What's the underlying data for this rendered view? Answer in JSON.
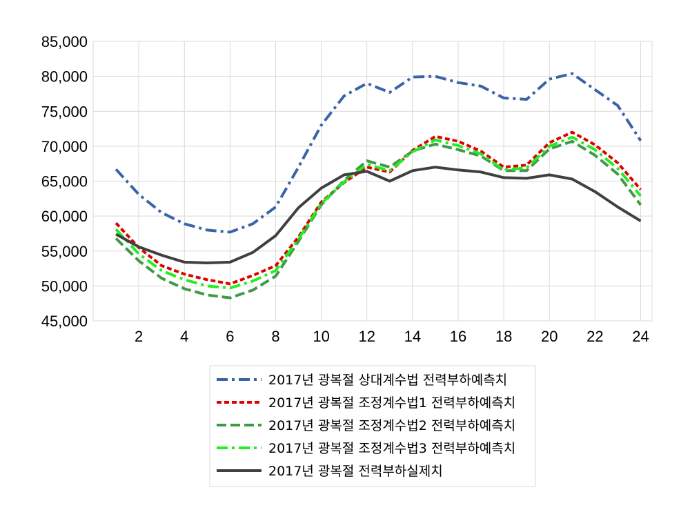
{
  "chart_data": {
    "type": "line",
    "title": "",
    "xlabel": "",
    "ylabel": "",
    "ylim": [
      45000,
      85000
    ],
    "y_ticks": [
      "45,000",
      "50,000",
      "55,000",
      "60,000",
      "65,000",
      "70,000",
      "75,000",
      "80,000",
      "85,000"
    ],
    "x_ticks": [
      "2",
      "4",
      "6",
      "8",
      "10",
      "12",
      "14",
      "16",
      "18",
      "20",
      "22",
      "24"
    ],
    "xlim": [
      0,
      24.5
    ],
    "grid": true,
    "legend_position": "bottom",
    "x": [
      1,
      2,
      3,
      4,
      5,
      6,
      7,
      8,
      9,
      10,
      11,
      12,
      13,
      14,
      15,
      16,
      17,
      18,
      19,
      20,
      21,
      22,
      23,
      24
    ],
    "series": [
      {
        "name": "2017년 광복절 상대계수법 전력부하예측치",
        "color": "#3a64a8",
        "dash": "dash-dot",
        "values": [
          66700,
          63100,
          60500,
          58900,
          58000,
          57700,
          58900,
          61300,
          67000,
          73000,
          77200,
          79000,
          77700,
          79900,
          80000,
          79100,
          78600,
          76900,
          76700,
          79600,
          80400,
          78100,
          75800,
          70800
        ]
      },
      {
        "name": "2017년 광복절 조정계수법1 전력부하예측치",
        "color": "#e00000",
        "dash": "short-dash",
        "values": [
          59000,
          55500,
          52900,
          51700,
          50900,
          50300,
          51500,
          52900,
          57000,
          62000,
          64800,
          67000,
          66300,
          69400,
          71400,
          70700,
          69300,
          67000,
          67300,
          70500,
          72000,
          70200,
          67600,
          63800
        ]
      },
      {
        "name": "2017년 광복절 조정계수법2 전력부하예측치",
        "color": "#3f9a47",
        "dash": "long-dash",
        "values": [
          56800,
          53600,
          51100,
          49600,
          48700,
          48300,
          49400,
          51400,
          56400,
          61600,
          65100,
          67900,
          67000,
          69300,
          70300,
          69500,
          68600,
          66500,
          66500,
          69600,
          70700,
          68700,
          66000,
          61600
        ]
      },
      {
        "name": "2017년 광복절 조정계수법3 전력부하예측치",
        "color": "#22ee22",
        "dash": "dash-dot",
        "values": [
          58100,
          54600,
          52200,
          50900,
          50000,
          49700,
          50700,
          52200,
          56700,
          61800,
          64900,
          67400,
          66500,
          69200,
          70900,
          70100,
          68900,
          66600,
          66900,
          70000,
          71300,
          69500,
          66800,
          62900
        ]
      },
      {
        "name": "2017년 광복절 전력부하실제치",
        "color": "#404040",
        "dash": "solid",
        "values": [
          57400,
          55600,
          54400,
          53400,
          53300,
          53400,
          54800,
          57200,
          61200,
          64000,
          65900,
          66400,
          65000,
          66500,
          67000,
          66600,
          66300,
          65500,
          65400,
          65900,
          65300,
          63500,
          61300,
          59300
        ]
      }
    ]
  }
}
